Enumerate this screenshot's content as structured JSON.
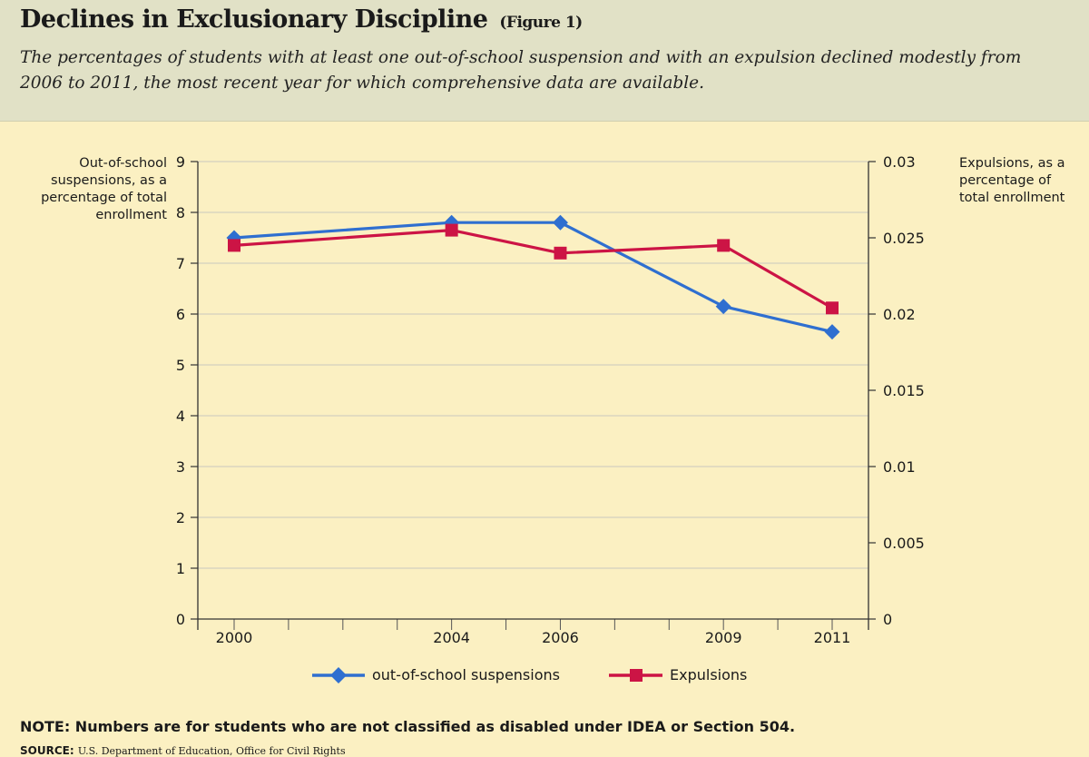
{
  "header": {
    "title": "Declines in Exclusionary Discipline",
    "figure_label": "(Figure 1)",
    "subtitle": "The percentages of students with at least one out-of-school suspension and with an expulsion declined modestly from 2006 to 2011, the most recent year for which comprehensive data are available."
  },
  "colors": {
    "header_bg": "#e1e1c6",
    "plot_bg": "#fbf0c2",
    "suspensions": "#2f6fd0",
    "expulsions": "#cc1445",
    "grid": "#d3cfc0"
  },
  "chart_data": {
    "type": "line",
    "x": [
      "2000",
      "2004",
      "2006",
      "2009",
      "2011"
    ],
    "x_values": [
      2000,
      2004,
      2006,
      2009,
      2011
    ],
    "xlim": [
      2000,
      2011
    ],
    "left_axis": {
      "label": "Out-of-school suspensions, as a percentage of total enrollment",
      "ylim": [
        0,
        9
      ],
      "ticks": [
        "0",
        "1",
        "2",
        "3",
        "4",
        "5",
        "6",
        "7",
        "8",
        "9"
      ]
    },
    "right_axis": {
      "label": "Expulsions, as a percentage of total enrollment",
      "ylim": [
        0,
        0.03
      ],
      "ticks": [
        "0",
        "0.005",
        "0.01",
        "0.015",
        "0.02",
        "0.025",
        "0.03"
      ]
    },
    "series": [
      {
        "name": "out-of-school suspensions",
        "axis": "left",
        "marker": "diamond",
        "values": [
          7.5,
          7.8,
          7.8,
          6.15,
          5.65
        ]
      },
      {
        "name": "Expulsions",
        "axis": "right",
        "marker": "square",
        "values": [
          0.0245,
          0.0255,
          0.024,
          0.0245,
          0.0204
        ]
      }
    ],
    "grid": true,
    "legend_position": "bottom-center"
  },
  "footer": {
    "note": "NOTE: Numbers are for students who are not classified as disabled under IDEA or Section 504.",
    "source_label": "SOURCE:",
    "source_text": "U.S. Department of Education, Office for Civil Rights"
  }
}
